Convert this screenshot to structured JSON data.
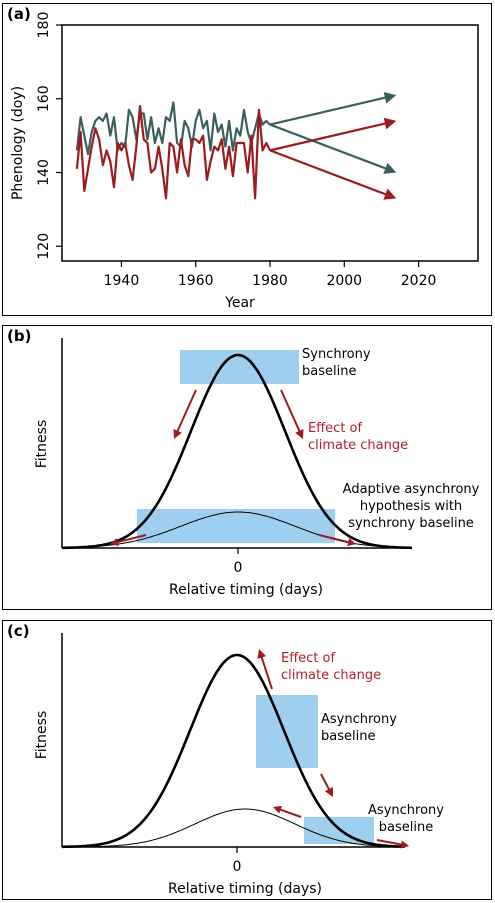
{
  "colors": {
    "dark_series": "#3a5f5c",
    "red_series": "#9b1b1e",
    "box_fill": "#9fcfee",
    "effect_text": "#b0202a",
    "axis": "#000000"
  },
  "panels": {
    "a": {
      "label": "(a)"
    },
    "b": {
      "label": "(b)"
    },
    "c": {
      "label": "(c)"
    }
  },
  "chart_data": [
    {
      "type": "line",
      "panel": "a",
      "ylabel": "Phenology (doy)",
      "xlabel": "Year",
      "xlim": [
        1924,
        2036
      ],
      "ylim": [
        116,
        180
      ],
      "xticks": [
        1940,
        1960,
        1980,
        2000,
        2020
      ],
      "yticks": [
        120,
        140,
        160,
        180
      ],
      "series": [
        {
          "color": "dark",
          "x": [
            1928,
            1929,
            1930,
            1931,
            1932,
            1933,
            1934,
            1935,
            1936,
            1937,
            1938,
            1939,
            1940,
            1941,
            1942,
            1943,
            1944,
            1945,
            1946,
            1947,
            1948,
            1949,
            1950,
            1951,
            1952,
            1953,
            1954,
            1955,
            1956,
            1957,
            1958,
            1959,
            1960,
            1961,
            1962,
            1963,
            1964,
            1965,
            1966,
            1967,
            1968,
            1969,
            1970,
            1971,
            1972,
            1973,
            1974,
            1975,
            1976,
            1977,
            1978,
            1979,
            1980
          ],
          "values": [
            146,
            155,
            150,
            145,
            151,
            154,
            155,
            154,
            156,
            150,
            155,
            146,
            148,
            147,
            157,
            155,
            149,
            156,
            156,
            149,
            155,
            148,
            152,
            148,
            155,
            154,
            159,
            148,
            147,
            154,
            152,
            147,
            154,
            157,
            152,
            154,
            146,
            156,
            151,
            153,
            147,
            154,
            146,
            152,
            150,
            157,
            151,
            148,
            152,
            156,
            153,
            154,
            153
          ]
        },
        {
          "color": "red",
          "x": [
            1928,
            1929,
            1930,
            1931,
            1932,
            1933,
            1934,
            1935,
            1936,
            1937,
            1938,
            1939,
            1940,
            1941,
            1942,
            1943,
            1944,
            1945,
            1946,
            1947,
            1948,
            1949,
            1950,
            1951,
            1952,
            1953,
            1954,
            1955,
            1956,
            1957,
            1958,
            1959,
            1960,
            1961,
            1962,
            1963,
            1964,
            1965,
            1966,
            1967,
            1968,
            1969,
            1970,
            1971,
            1972,
            1973,
            1974,
            1975,
            1976,
            1977,
            1978,
            1979,
            1980
          ],
          "values": [
            141,
            151,
            135,
            141,
            147,
            152,
            149,
            142,
            146,
            143,
            136,
            148,
            146,
            148,
            142,
            138,
            147,
            158,
            149,
            148,
            140,
            141,
            147,
            141,
            133,
            148,
            147,
            140,
            149,
            142,
            139,
            149,
            149,
            148,
            150,
            138,
            143,
            147,
            146,
            149,
            141,
            147,
            139,
            148,
            148,
            148,
            140,
            150,
            133,
            157,
            146,
            148,
            146
          ]
        }
      ],
      "projections": [
        {
          "color": "dark",
          "from": [
            1980,
            153
          ],
          "to": [
            2014,
            161
          ]
        },
        {
          "color": "dark",
          "from": [
            1980,
            153
          ],
          "to": [
            2014,
            140
          ]
        },
        {
          "color": "red",
          "from": [
            1980,
            146
          ],
          "to": [
            2014,
            154
          ]
        },
        {
          "color": "red",
          "from": [
            1980,
            146
          ],
          "to": [
            2014,
            133
          ]
        }
      ]
    },
    {
      "type": "line",
      "panel": "b",
      "ylabel": "Fitness",
      "xlabel": "Relative timing (days)",
      "xticks": [
        0
      ],
      "curves": [
        {
          "name": "synchrony",
          "center": 0,
          "peak": 1.0,
          "width": 1.0,
          "weight": "thick"
        },
        {
          "name": "adaptive",
          "center": 0,
          "peak": 0.18,
          "width": 1.0,
          "weight": "thin"
        }
      ],
      "annotations": {
        "synchrony_baseline": "Synchrony\nbaseline",
        "effect": "Effect of\nclimate change",
        "adaptive": "Adaptive asynchrony\nhypothesis with\nsynchrony baseline"
      }
    },
    {
      "type": "line",
      "panel": "c",
      "ylabel": "Fitness",
      "xlabel": "Relative timing (days)",
      "xticks": [
        0
      ],
      "curves": [
        {
          "name": "asynchrony",
          "center": 0,
          "peak": 1.0,
          "width": 1.0,
          "weight": "thick"
        },
        {
          "name": "adaptive",
          "center": 0.1,
          "peak": 0.2,
          "width": 1.0,
          "weight": "thin"
        }
      ],
      "annotations": {
        "effect": "Effect of\nclimate change",
        "asynchrony_baseline_1": "Asynchrony\nbaseline",
        "asynchrony_baseline_2": "Asynchrony\nbaseline"
      }
    }
  ]
}
